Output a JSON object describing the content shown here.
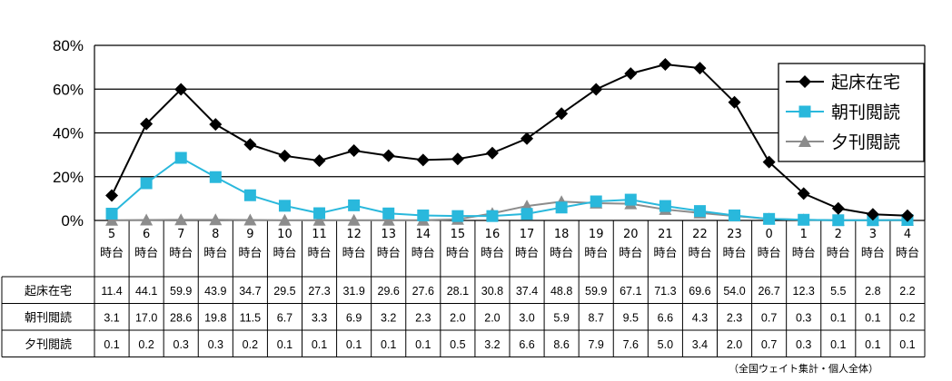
{
  "chart_data": {
    "type": "line",
    "y_unit": "%",
    "ylim": [
      0,
      80
    ],
    "y_ticks": [
      "80%",
      "60%",
      "40%",
      "20%",
      "0%"
    ],
    "grid": true,
    "legend_position": "top-right",
    "hour_suffix": "時台",
    "categories": [
      "5",
      "6",
      "7",
      "8",
      "9",
      "10",
      "11",
      "12",
      "13",
      "14",
      "15",
      "16",
      "17",
      "18",
      "19",
      "20",
      "21",
      "22",
      "23",
      "0",
      "1",
      "2",
      "3",
      "4"
    ],
    "series": [
      {
        "name": "起床在宅",
        "color": "#000000",
        "marker": "diamond",
        "values": [
          11.4,
          44.1,
          59.9,
          43.9,
          34.7,
          29.5,
          27.3,
          31.9,
          29.6,
          27.6,
          28.1,
          30.8,
          37.4,
          48.8,
          59.9,
          67.1,
          71.3,
          69.6,
          54.0,
          26.7,
          12.3,
          5.5,
          2.8,
          2.2
        ]
      },
      {
        "name": "朝刊閲読",
        "color": "#29b8dc",
        "marker": "square",
        "values": [
          3.1,
          17.0,
          28.6,
          19.8,
          11.5,
          6.7,
          3.3,
          6.9,
          3.2,
          2.3,
          2.0,
          2.0,
          3.0,
          5.9,
          8.7,
          9.5,
          6.6,
          4.3,
          2.3,
          0.7,
          0.3,
          0.1,
          0.1,
          0.2
        ]
      },
      {
        "name": "夕刊閲読",
        "color": "#8c8c8c",
        "marker": "triangle",
        "values": [
          0.1,
          0.2,
          0.3,
          0.3,
          0.2,
          0.1,
          0.1,
          0.1,
          0.1,
          0.1,
          0.5,
          3.2,
          6.6,
          8.6,
          7.9,
          7.6,
          5.0,
          3.4,
          2.0,
          0.7,
          0.3,
          0.1,
          0.1,
          0.1
        ]
      }
    ],
    "table_values": [
      [
        "11.4",
        "44.1",
        "59.9",
        "43.9",
        "34.7",
        "29.5",
        "27.3",
        "31.9",
        "29.6",
        "27.6",
        "28.1",
        "30.8",
        "37.4",
        "48.8",
        "59.9",
        "67.1",
        "71.3",
        "69.6",
        "54.0",
        "26.7",
        "12.3",
        "5.5",
        "2.8",
        "2.2"
      ],
      [
        "3.1",
        "17.0",
        "28.6",
        "19.8",
        "11.5",
        "6.7",
        "3.3",
        "6.9",
        "3.2",
        "2.3",
        "2.0",
        "2.0",
        "3.0",
        "5.9",
        "8.7",
        "9.5",
        "6.6",
        "4.3",
        "2.3",
        "0.7",
        "0.3",
        "0.1",
        "0.1",
        "0.2"
      ],
      [
        "0.1",
        "0.2",
        "0.3",
        "0.3",
        "0.2",
        "0.1",
        "0.1",
        "0.1",
        "0.1",
        "0.1",
        "0.5",
        "3.2",
        "6.6",
        "8.6",
        "7.9",
        "7.6",
        "5.0",
        "3.4",
        "2.0",
        "0.7",
        "0.3",
        "0.1",
        "0.1",
        "0.1"
      ]
    ],
    "footnote": "（全国ウェイト集計・個人全体）"
  }
}
